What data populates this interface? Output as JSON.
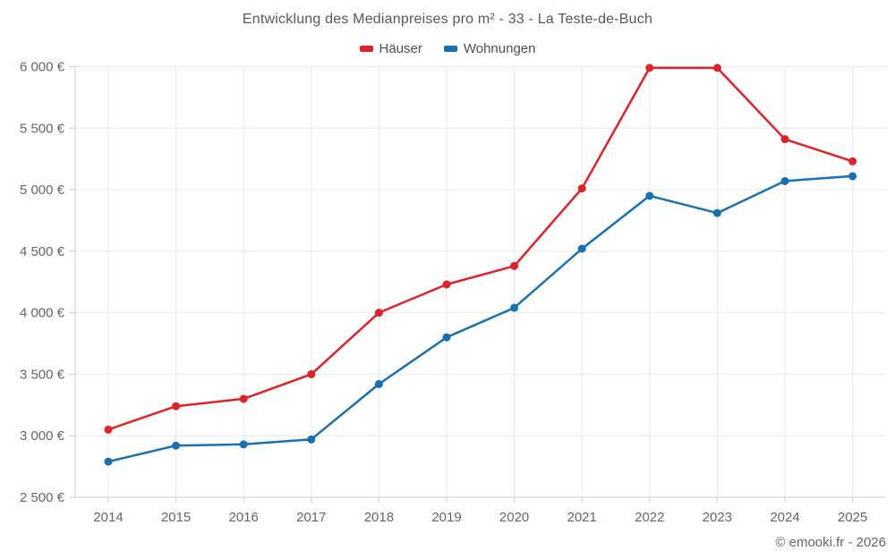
{
  "title": "Entwicklung des Medianpreises pro m² - 33 - La Teste-de-Buch",
  "footer": "© emooki.fr - 2026",
  "legend": {
    "items": [
      {
        "label": "Häuser",
        "color": "#e02128"
      },
      {
        "label": "Wohnungen",
        "color": "#1670b1"
      }
    ]
  },
  "chart_data": {
    "type": "line",
    "title": "Entwicklung des Medianpreises pro m² - 33 - La Teste-de-Buch",
    "x": [
      2014,
      2015,
      2016,
      2017,
      2018,
      2019,
      2020,
      2021,
      2022,
      2023,
      2024,
      2025
    ],
    "series": [
      {
        "name": "Häuser",
        "color": "#e02128",
        "values": [
          3050,
          3240,
          3300,
          3500,
          4000,
          4230,
          4380,
          5010,
          5990,
          5990,
          5410,
          5230
        ]
      },
      {
        "name": "Wohnungen",
        "color": "#1670b1",
        "values": [
          2790,
          2920,
          2930,
          2970,
          3420,
          3800,
          4040,
          4520,
          4950,
          4810,
          5070,
          5110
        ]
      }
    ],
    "xlabel": "",
    "ylabel": "",
    "ylim": [
      2500,
      6000
    ],
    "ytick_step": 500,
    "yticks": [
      {
        "value": 2500,
        "label": "2 500 €"
      },
      {
        "value": 3000,
        "label": "3 000 €"
      },
      {
        "value": 3500,
        "label": "3 500 €"
      },
      {
        "value": 4000,
        "label": "4 000 €"
      },
      {
        "value": 4500,
        "label": "4 500 €"
      },
      {
        "value": 5000,
        "label": "5 000 €"
      },
      {
        "value": 5500,
        "label": "5 500 €"
      },
      {
        "value": 6000,
        "label": "6 000 €"
      }
    ],
    "grid": true,
    "legend_position": "top"
  },
  "colors": {
    "grid": "#e9e9e9",
    "axis": "#cccccc",
    "tick": "#cccccc",
    "tick_text": "#666666"
  }
}
